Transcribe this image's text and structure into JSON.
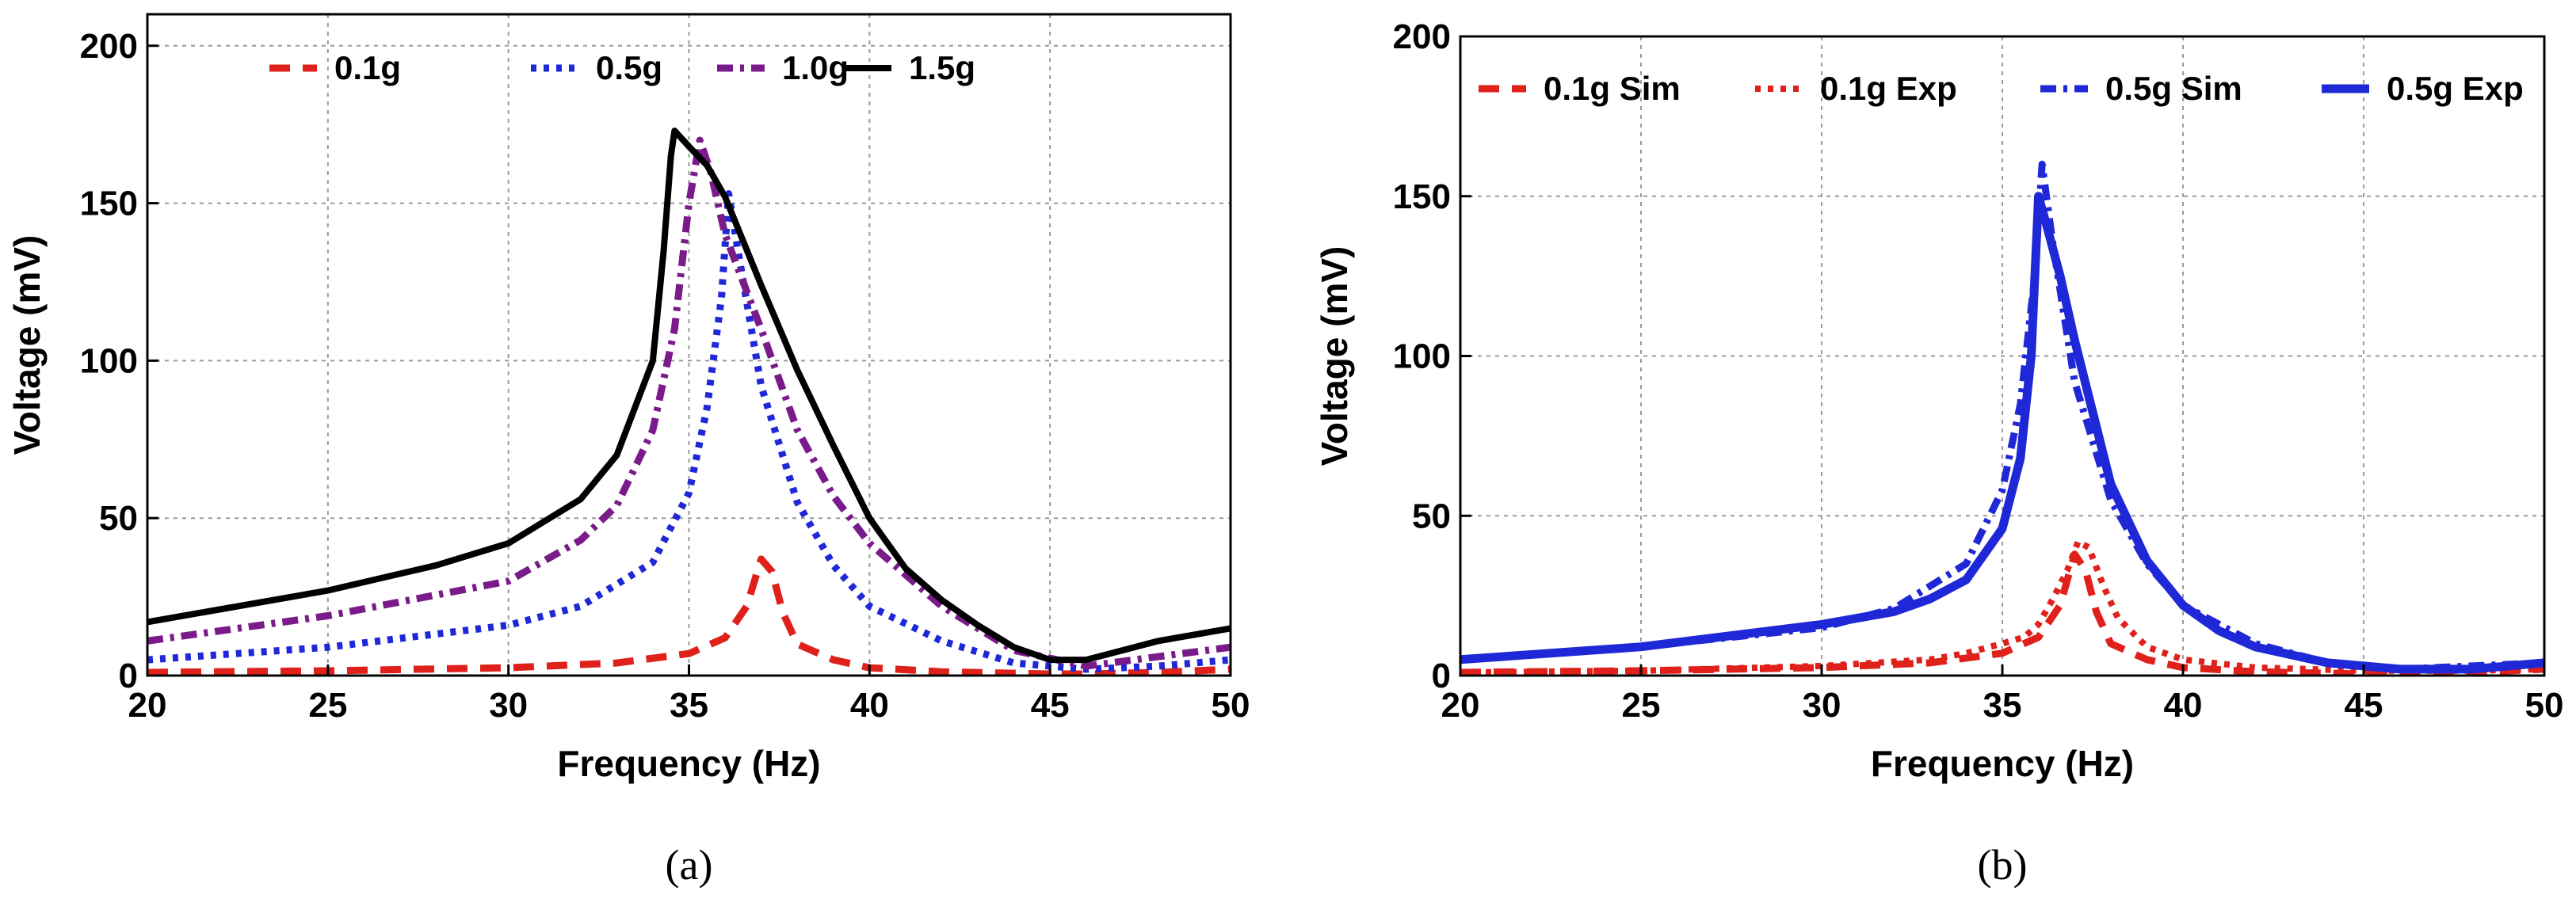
{
  "chart_data": [
    {
      "type": "line",
      "panel_label": "(a)",
      "title": "",
      "xlabel": "Frequency (Hz)",
      "ylabel": "Voltage (mV)",
      "xlim": [
        20,
        50
      ],
      "ylim": [
        0,
        210
      ],
      "xticks": [
        20,
        25,
        30,
        35,
        40,
        45,
        50
      ],
      "yticks": [
        0,
        50,
        100,
        150,
        200
      ],
      "grid": true,
      "legend_position": "top",
      "series": [
        {
          "name": "0.1g",
          "color": "#e0201b",
          "dash": "dashed",
          "x": [
            20,
            25,
            30,
            33,
            35,
            36,
            36.6,
            37.0,
            37.3,
            37.6,
            38,
            39,
            40,
            42,
            45,
            46,
            48,
            50
          ],
          "y": [
            1,
            1.5,
            2.5,
            4,
            7,
            12,
            22,
            37,
            33,
            20,
            10,
            5,
            2.5,
            1.2,
            0.5,
            0.5,
            1,
            2
          ]
        },
        {
          "name": "0.5g",
          "color": "#1f28d6",
          "dash": "dotted",
          "x": [
            20,
            25,
            30,
            32,
            34,
            35,
            35.5,
            35.9,
            36.1,
            36.4,
            37,
            38,
            39,
            40,
            42,
            44,
            46,
            48,
            50
          ],
          "y": [
            5,
            9,
            16,
            22,
            36,
            58,
            85,
            120,
            153,
            132,
            92,
            55,
            35,
            22,
            11,
            4,
            2,
            3,
            5
          ]
        },
        {
          "name": "1.0g",
          "color": "#7a1b8a",
          "dash": "dashdot",
          "x": [
            20,
            25,
            30,
            32,
            33,
            34,
            34.6,
            35.0,
            35.3,
            35.6,
            36,
            37,
            38,
            39,
            40,
            42,
            44,
            46,
            48,
            50
          ],
          "y": [
            11,
            19,
            30,
            43,
            54,
            78,
            110,
            150,
            170,
            160,
            140,
            110,
            78,
            57,
            42,
            22,
            8,
            3,
            6,
            9
          ]
        },
        {
          "name": "1.5g",
          "color": "#000000",
          "dash": "solid",
          "x": [
            20,
            22,
            25,
            28,
            30,
            32,
            33,
            34,
            34.3,
            34.5,
            34.6,
            35,
            35.5,
            36,
            37,
            38,
            39,
            40,
            41,
            42,
            43,
            44,
            45,
            46,
            47,
            48,
            50
          ],
          "y": [
            17,
            21,
            27,
            35,
            42,
            56,
            70,
            100,
            135,
            165,
            173,
            168,
            162,
            152,
            124,
            97,
            73,
            50,
            34,
            24,
            16,
            9,
            5,
            5,
            8,
            11,
            15
          ]
        }
      ]
    },
    {
      "type": "line",
      "panel_label": "(b)",
      "title": "",
      "xlabel": "Frequency (Hz)",
      "ylabel": "Voltage (mV)",
      "xlim": [
        20,
        50
      ],
      "ylim": [
        0,
        200
      ],
      "xticks": [
        20,
        25,
        30,
        35,
        40,
        45,
        50
      ],
      "yticks": [
        0,
        50,
        100,
        150,
        200
      ],
      "grid": true,
      "legend_position": "top",
      "series": [
        {
          "name": "0.1g Sim",
          "color": "#e0201b",
          "dash": "dashed",
          "x": [
            20,
            25,
            30,
            33,
            35,
            36,
            36.6,
            37.0,
            37.3,
            37.6,
            38,
            39,
            40,
            42,
            45,
            46,
            48,
            50
          ],
          "y": [
            1,
            1.5,
            2.5,
            4,
            7,
            12,
            22,
            38,
            33,
            20,
            10,
            5,
            2.5,
            1.2,
            0.5,
            0.5,
            1,
            2
          ]
        },
        {
          "name": "0.1g Exp",
          "color": "#e0201b",
          "dash": "dotted",
          "x": [
            20,
            25,
            30,
            33,
            34,
            35,
            35.6,
            36.0,
            36.4,
            36.8,
            37.1,
            37.4,
            37.8,
            38.2,
            39,
            40,
            42,
            45,
            48,
            50
          ],
          "y": [
            1,
            1.5,
            3,
            5,
            7,
            10,
            12,
            16,
            24,
            33,
            42,
            40,
            28,
            18,
            9,
            5,
            2.5,
            1.5,
            1.5,
            2
          ]
        },
        {
          "name": "0.5g Sim",
          "color": "#1f28d6",
          "dash": "dashdot",
          "x": [
            20,
            25,
            30,
            32,
            34,
            35,
            35.5,
            35.9,
            36.1,
            36.4,
            37,
            38,
            39,
            40,
            42,
            44,
            46,
            48,
            50
          ],
          "y": [
            5,
            9,
            15,
            21,
            35,
            58,
            85,
            125,
            160,
            135,
            92,
            55,
            35,
            22,
            10,
            4,
            2,
            3,
            4
          ]
        },
        {
          "name": "0.5g Exp",
          "color": "#1f28d6",
          "dash": "solid",
          "x": [
            20,
            25,
            30,
            32,
            33,
            34,
            35,
            35.5,
            35.8,
            36.0,
            36.2,
            36.6,
            37,
            38,
            39,
            40,
            41,
            42,
            44,
            46,
            48,
            50
          ],
          "y": [
            5,
            9,
            16,
            20,
            24,
            30,
            46,
            68,
            100,
            150,
            142,
            125,
            105,
            60,
            36,
            22,
            14,
            9,
            4,
            2,
            2,
            4
          ]
        }
      ]
    }
  ]
}
